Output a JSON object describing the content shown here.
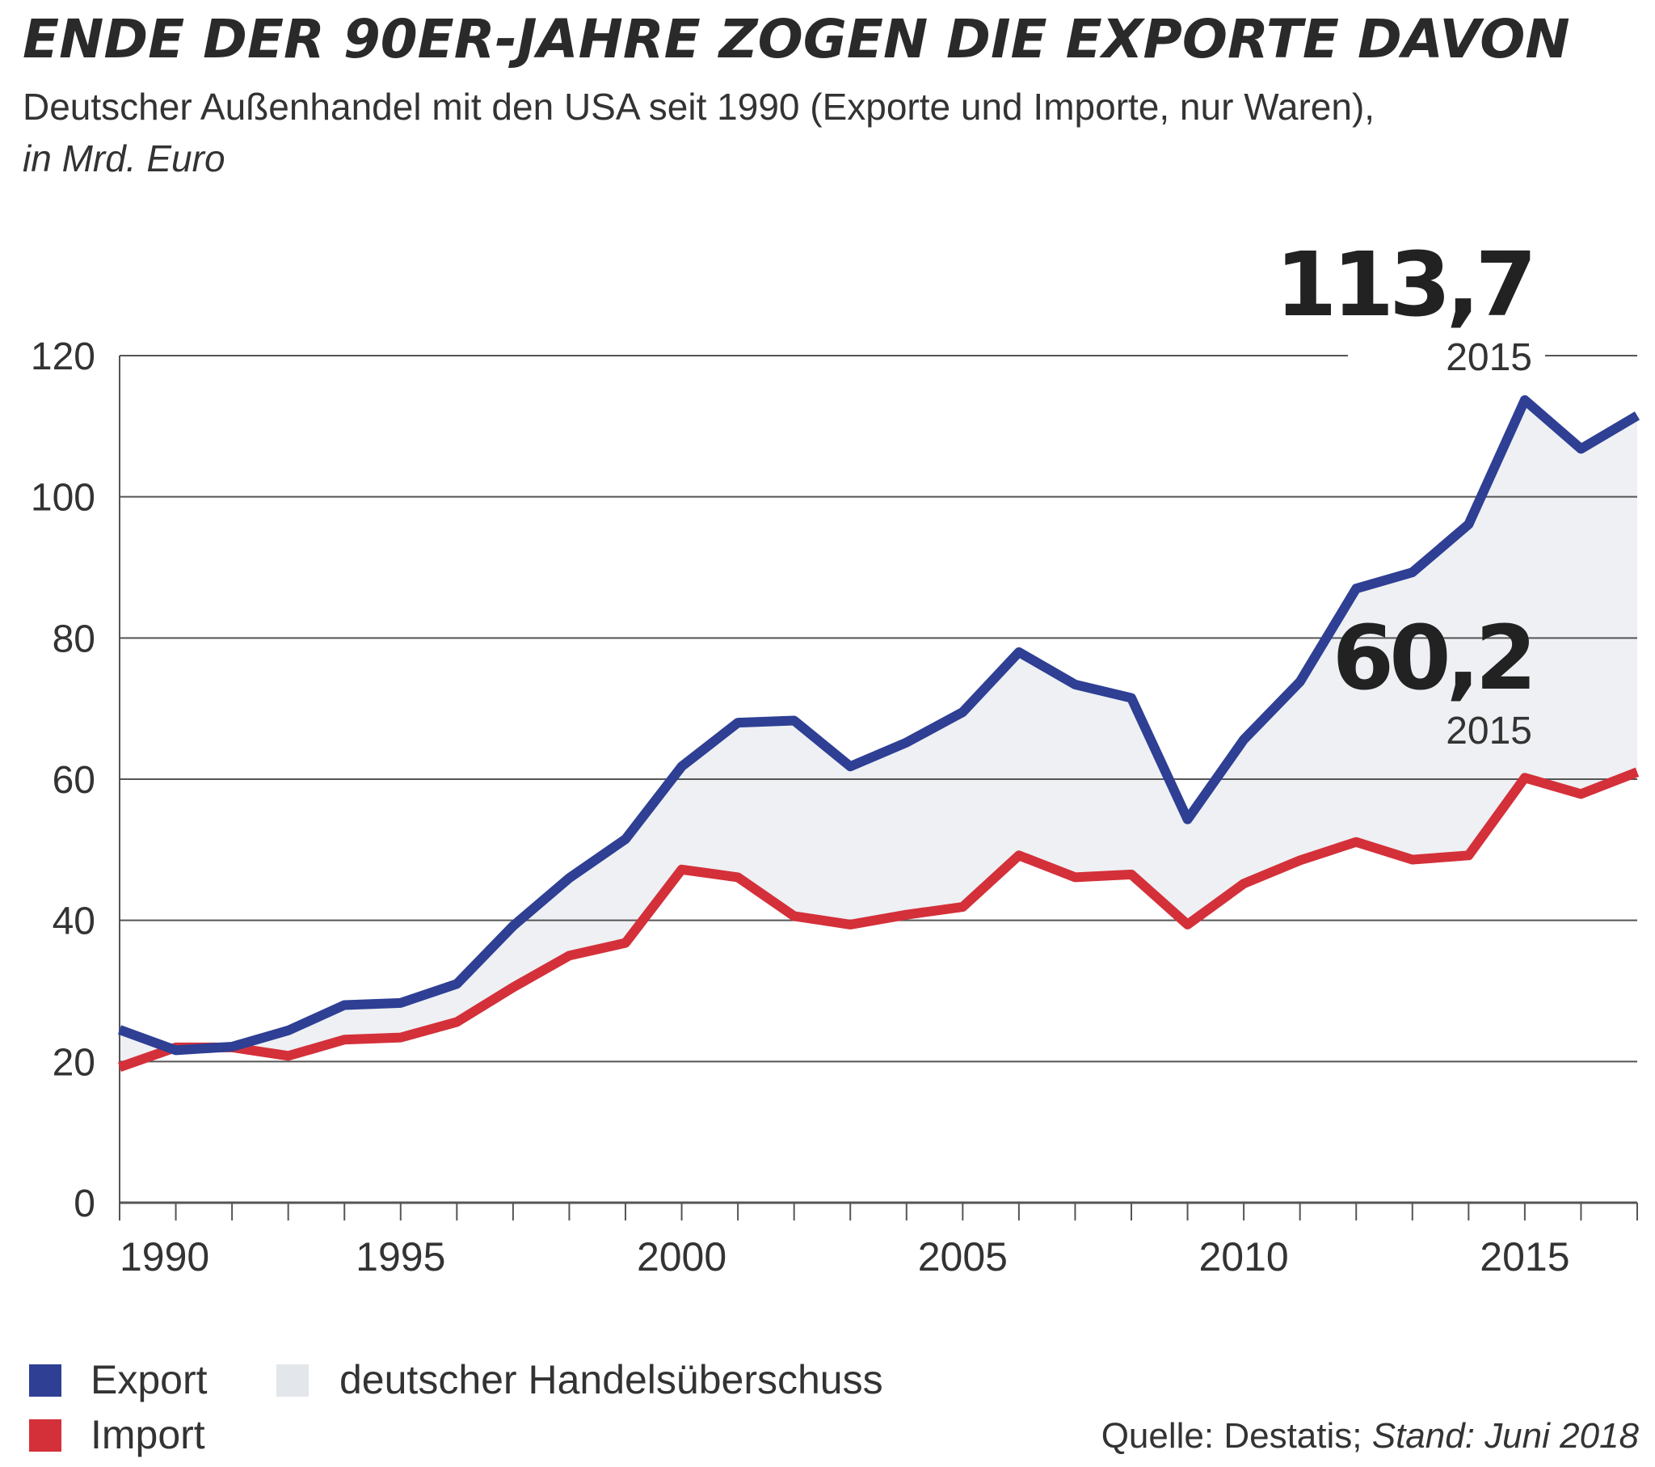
{
  "header": {
    "title": "ENDE DER 90ER-JAHRE ZOGEN DIE EXPORTE DAVON",
    "subtitle_plain": "Deutscher Außenhandel mit den USA seit 1990 (Exporte und Importe, nur Waren),",
    "subtitle_italic": "in Mrd. Euro"
  },
  "colors": {
    "export": "#2e3f94",
    "import": "#d4303a",
    "surplus": "#eef0f3",
    "grid": "#555555",
    "text": "#333333"
  },
  "chart_data": {
    "type": "line",
    "x": [
      1990,
      1991,
      1992,
      1993,
      1994,
      1995,
      1996,
      1997,
      1998,
      1999,
      2000,
      2001,
      2002,
      2003,
      2004,
      2005,
      2006,
      2007,
      2008,
      2009,
      2010,
      2011,
      2012,
      2013,
      2014,
      2015,
      2016,
      2017
    ],
    "series": [
      {
        "name": "Export",
        "values": [
          24.5,
          21.6,
          22.1,
          24.4,
          28.0,
          28.3,
          31.0,
          39.2,
          46.0,
          51.5,
          61.8,
          68.0,
          68.3,
          61.8,
          65.2,
          69.5,
          78.0,
          73.4,
          71.5,
          54.3,
          65.6,
          73.8,
          87.0,
          89.3,
          96.1,
          113.7,
          106.8,
          111.5
        ]
      },
      {
        "name": "Import",
        "values": [
          19.2,
          22.0,
          22.0,
          20.8,
          23.1,
          23.4,
          25.6,
          30.5,
          35.0,
          36.8,
          47.2,
          46.1,
          40.6,
          39.4,
          40.8,
          41.9,
          49.2,
          46.1,
          46.5,
          39.4,
          45.2,
          48.5,
          51.1,
          48.6,
          49.2,
          60.2,
          57.9,
          61.0
        ]
      }
    ],
    "surplus_label": "deutscher Handelsüberschuss",
    "ylim": [
      0,
      120
    ],
    "yticks": [
      0,
      20,
      40,
      60,
      80,
      100,
      120
    ],
    "xtick_labels": [
      "1990",
      "1995",
      "2000",
      "2005",
      "2010",
      "2015"
    ],
    "xlim": [
      1990,
      2017
    ],
    "grid": true,
    "annotations": [
      {
        "value": "113,7",
        "year": "2015",
        "series": "Export"
      },
      {
        "value": "60,2",
        "year": "2015",
        "series": "Import"
      }
    ],
    "legend_position": "bottom-left"
  },
  "footer": {
    "source_plain": "Quelle: Destatis;",
    "source_italic": "Stand: Juni 2018"
  }
}
